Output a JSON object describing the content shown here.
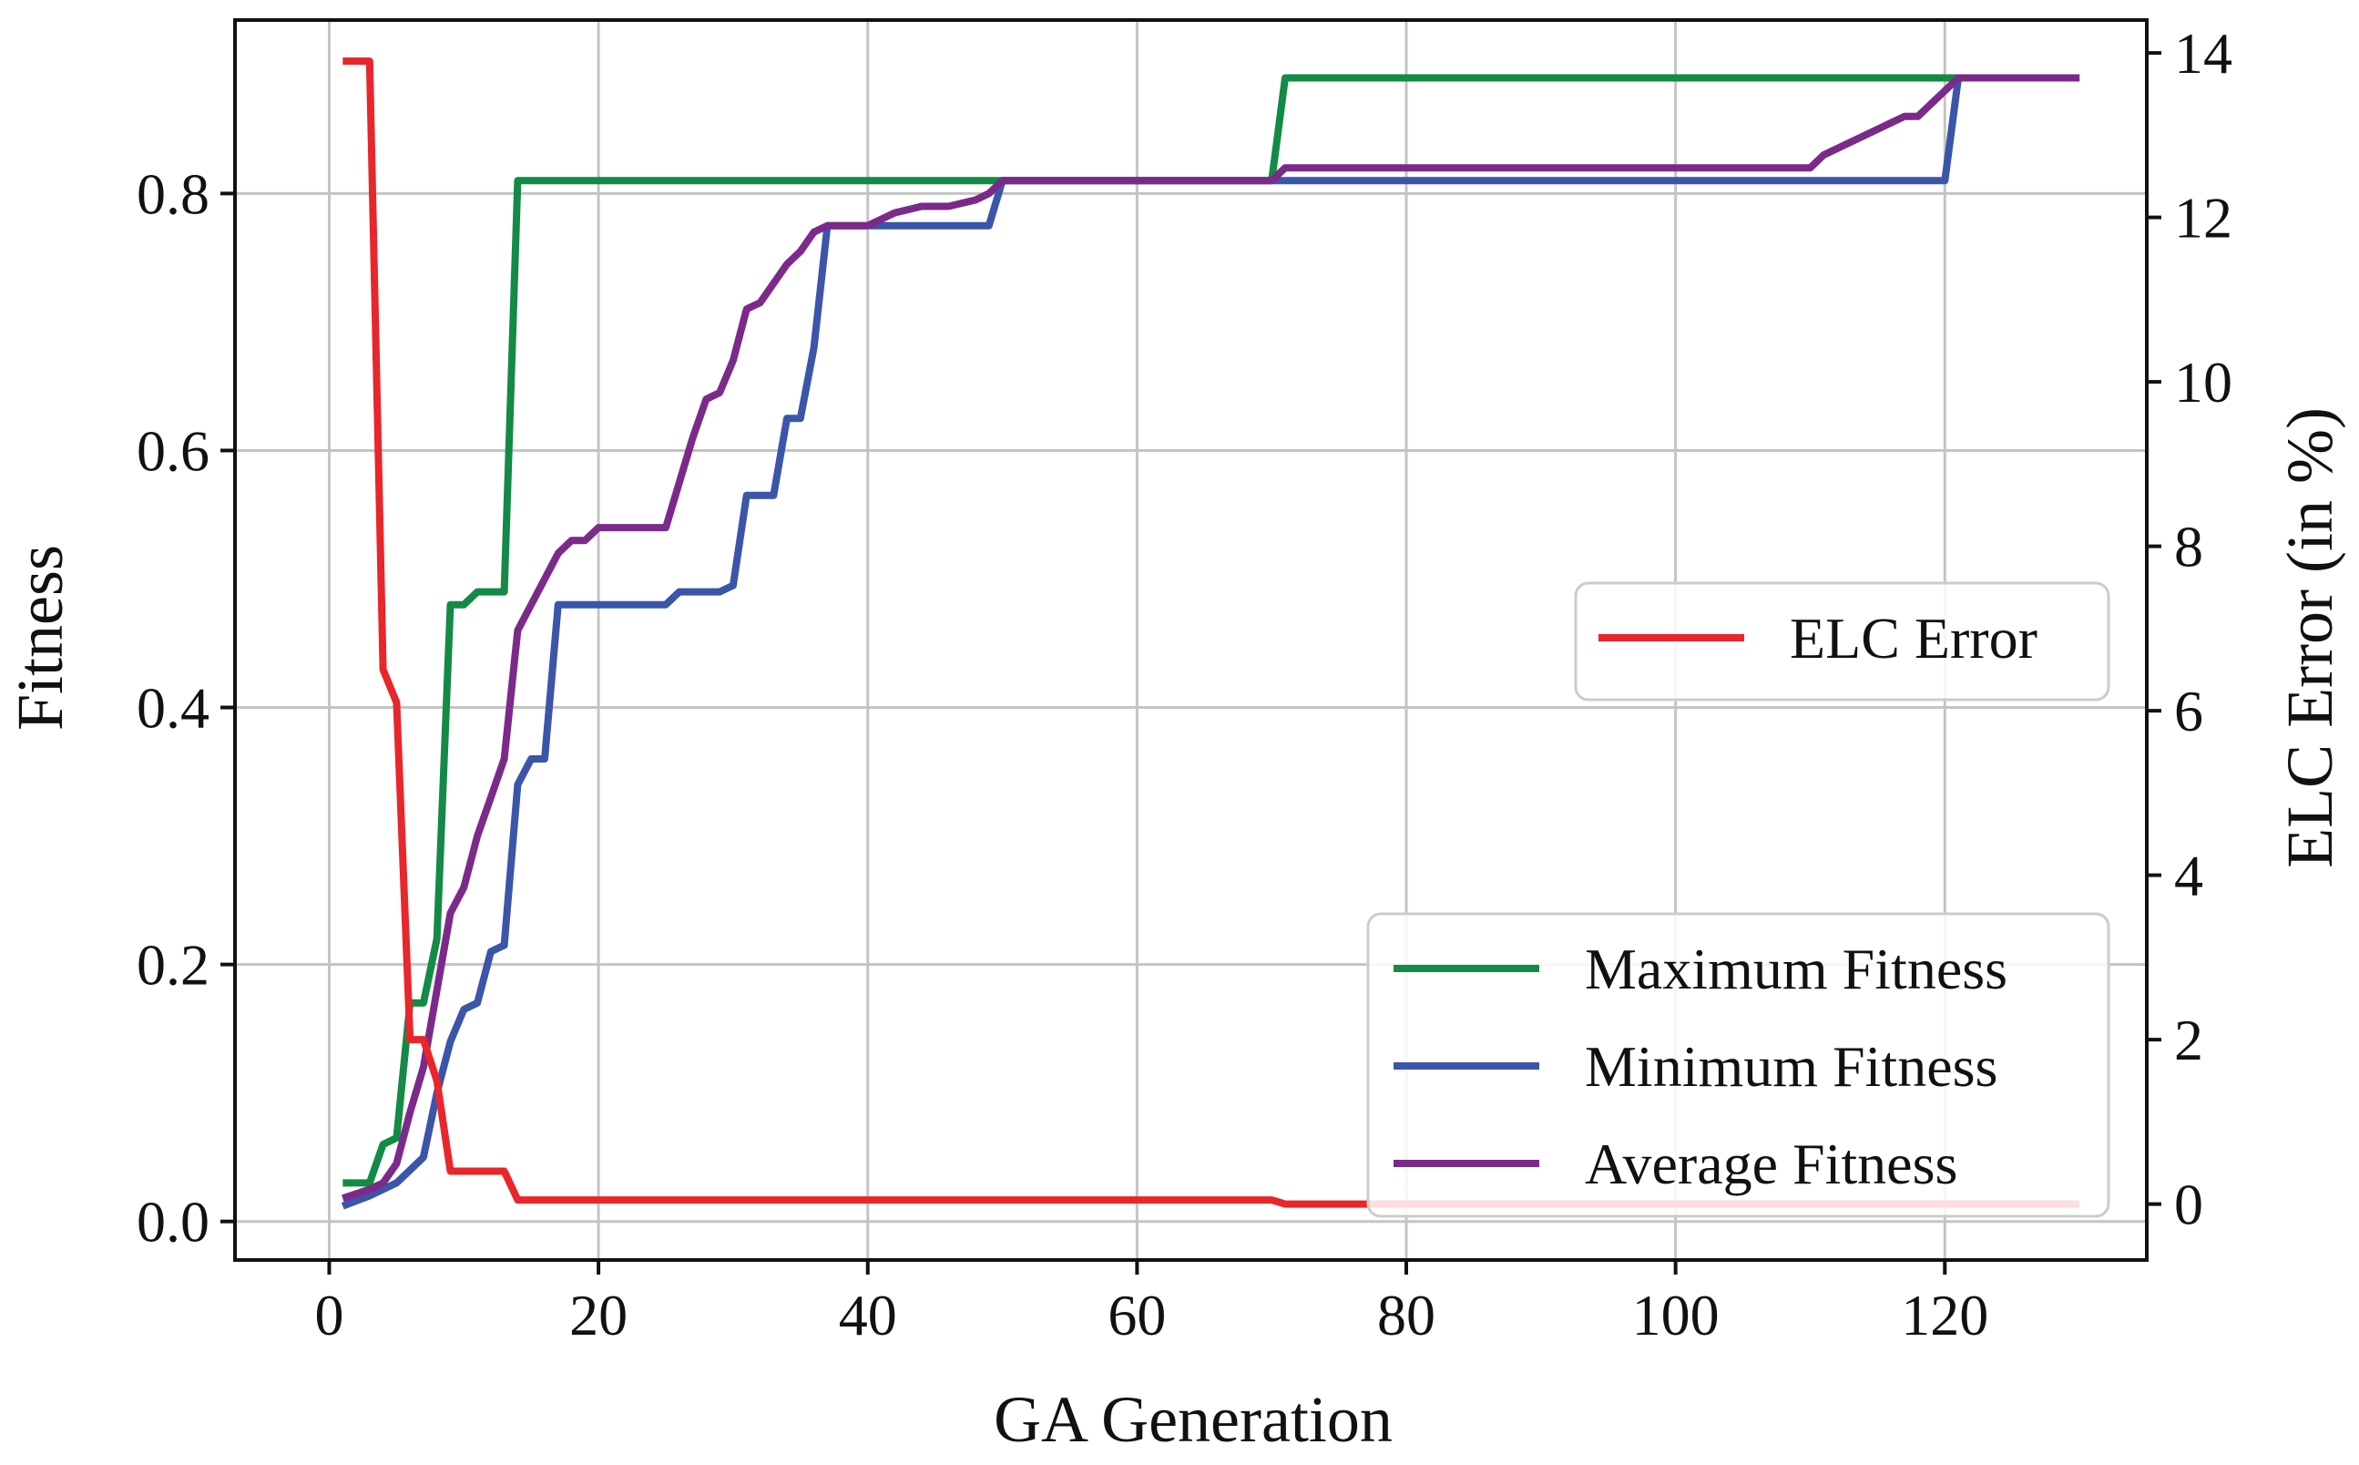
{
  "chart_data": {
    "type": "line",
    "title": "",
    "xlabel": "GA Generation",
    "ylabel_left": "Fitness",
    "ylabel_right": "ELC Error (in %)",
    "xlim": [
      -7,
      135
    ],
    "ylim_left": [
      -0.03,
      0.935
    ],
    "ylim_right": [
      -0.68,
      14.4
    ],
    "xticks": [
      0,
      20,
      40,
      60,
      80,
      100,
      120
    ],
    "xtick_labels": [
      "0",
      "20",
      "40",
      "60",
      "80",
      "100",
      "120"
    ],
    "yticks_left": [
      0.0,
      0.2,
      0.4,
      0.6,
      0.8
    ],
    "ytick_labels_left": [
      "0.0",
      "0.2",
      "0.4",
      "0.6",
      "0.8"
    ],
    "yticks_right": [
      0,
      2,
      4,
      6,
      8,
      10,
      12,
      14
    ],
    "ytick_labels_right": [
      "0",
      "2",
      "4",
      "6",
      "8",
      "10",
      "12",
      "14"
    ],
    "grid": true,
    "legend_right_axis": {
      "placement": "center-right",
      "entries": [
        "ELC Error"
      ]
    },
    "legend_left_axis": {
      "placement": "lower-right",
      "entries": [
        "Maximum Fitness",
        "Minimum Fitness",
        "Average Fitness"
      ]
    },
    "colors": {
      "max": "#138a45",
      "min": "#3b55a8",
      "avg": "#7b2a8a",
      "elc": "#e8262b",
      "grid": "#c4c4c4",
      "frame": "#111111"
    },
    "series": [
      {
        "name": "Maximum Fitness",
        "axis": "left",
        "color": "#138a45",
        "points": [
          [
            1,
            0.03
          ],
          [
            3,
            0.03
          ],
          [
            4,
            0.06
          ],
          [
            5,
            0.065
          ],
          [
            6,
            0.17
          ],
          [
            7,
            0.17
          ],
          [
            8,
            0.22
          ],
          [
            9,
            0.48
          ],
          [
            10,
            0.48
          ],
          [
            11,
            0.49
          ],
          [
            13,
            0.49
          ],
          [
            14,
            0.81
          ],
          [
            70,
            0.81
          ],
          [
            71,
            0.89
          ],
          [
            121,
            0.89
          ],
          [
            130,
            0.89
          ]
        ]
      },
      {
        "name": "Minimum Fitness",
        "axis": "left",
        "color": "#3b55a8",
        "points": [
          [
            1,
            0.012
          ],
          [
            3,
            0.02
          ],
          [
            5,
            0.03
          ],
          [
            6,
            0.04
          ],
          [
            7,
            0.05
          ],
          [
            8,
            0.1
          ],
          [
            9,
            0.14
          ],
          [
            10,
            0.165
          ],
          [
            11,
            0.17
          ],
          [
            12,
            0.21
          ],
          [
            13,
            0.215
          ],
          [
            14,
            0.34
          ],
          [
            15,
            0.36
          ],
          [
            16,
            0.36
          ],
          [
            17,
            0.48
          ],
          [
            25,
            0.48
          ],
          [
            26,
            0.49
          ],
          [
            29,
            0.49
          ],
          [
            30,
            0.495
          ],
          [
            31,
            0.565
          ],
          [
            33,
            0.565
          ],
          [
            34,
            0.625
          ],
          [
            35,
            0.625
          ],
          [
            36,
            0.68
          ],
          [
            37,
            0.775
          ],
          [
            49,
            0.775
          ],
          [
            50,
            0.81
          ],
          [
            120,
            0.81
          ],
          [
            121,
            0.89
          ],
          [
            130,
            0.89
          ]
        ]
      },
      {
        "name": "Average Fitness",
        "axis": "left",
        "color": "#7b2a8a",
        "points": [
          [
            1,
            0.018
          ],
          [
            3,
            0.025
          ],
          [
            4,
            0.03
          ],
          [
            5,
            0.045
          ],
          [
            6,
            0.085
          ],
          [
            7,
            0.12
          ],
          [
            8,
            0.18
          ],
          [
            9,
            0.24
          ],
          [
            10,
            0.26
          ],
          [
            11,
            0.3
          ],
          [
            12,
            0.33
          ],
          [
            13,
            0.36
          ],
          [
            14,
            0.46
          ],
          [
            15,
            0.48
          ],
          [
            16,
            0.5
          ],
          [
            17,
            0.52
          ],
          [
            18,
            0.53
          ],
          [
            19,
            0.53
          ],
          [
            20,
            0.54
          ],
          [
            25,
            0.54
          ],
          [
            26,
            0.575
          ],
          [
            27,
            0.61
          ],
          [
            28,
            0.64
          ],
          [
            29,
            0.645
          ],
          [
            30,
            0.67
          ],
          [
            31,
            0.71
          ],
          [
            32,
            0.715
          ],
          [
            33,
            0.73
          ],
          [
            34,
            0.745
          ],
          [
            35,
            0.755
          ],
          [
            36,
            0.77
          ],
          [
            37,
            0.775
          ],
          [
            40,
            0.775
          ],
          [
            42,
            0.785
          ],
          [
            44,
            0.79
          ],
          [
            46,
            0.79
          ],
          [
            48,
            0.795
          ],
          [
            49,
            0.8
          ],
          [
            50,
            0.81
          ],
          [
            60,
            0.81
          ],
          [
            70,
            0.81
          ],
          [
            71,
            0.82
          ],
          [
            90,
            0.82
          ],
          [
            110,
            0.82
          ],
          [
            111,
            0.83
          ],
          [
            113,
            0.84
          ],
          [
            115,
            0.85
          ],
          [
            117,
            0.86
          ],
          [
            118,
            0.86
          ],
          [
            119,
            0.87
          ],
          [
            120,
            0.88
          ],
          [
            121,
            0.89
          ],
          [
            130,
            0.89
          ]
        ]
      },
      {
        "name": "ELC Error",
        "axis": "right",
        "color": "#e8262b",
        "points": [
          [
            1,
            13.9
          ],
          [
            3,
            13.9
          ],
          [
            4,
            6.5
          ],
          [
            5,
            6.1
          ],
          [
            6,
            2.0
          ],
          [
            7,
            2.0
          ],
          [
            8,
            1.5
          ],
          [
            9,
            0.4
          ],
          [
            11,
            0.4
          ],
          [
            13,
            0.4
          ],
          [
            14,
            0.05
          ],
          [
            70,
            0.05
          ],
          [
            71,
            0.0
          ],
          [
            130,
            0.0
          ]
        ]
      }
    ]
  }
}
